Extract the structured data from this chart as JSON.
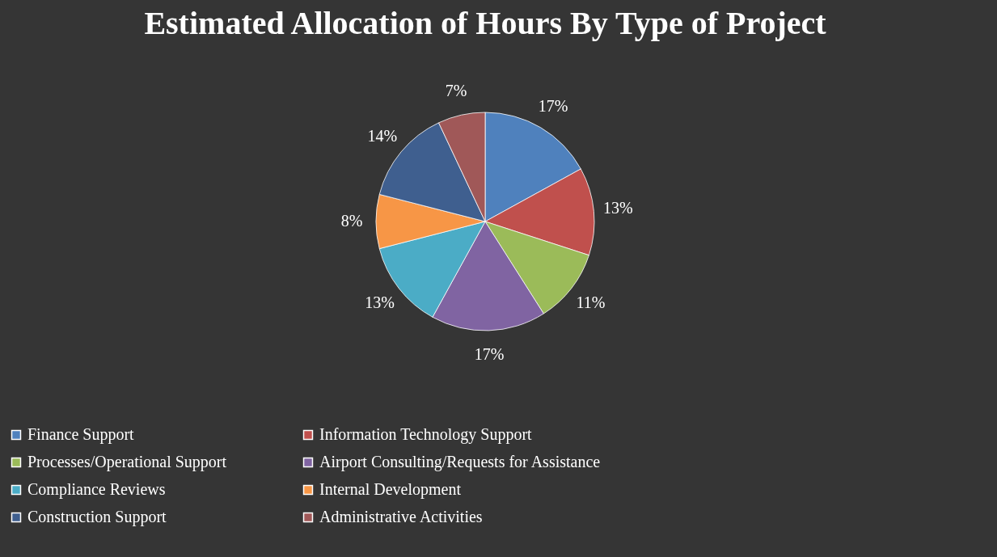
{
  "chart_data": {
    "type": "pie",
    "title": "Estimated Allocation of Hours By Type of Project",
    "categories": [
      "Finance Support",
      "Information Technology Support",
      "Processes/Operational Support",
      "Airport Consulting/Requests for Assistance",
      "Compliance Reviews",
      "Internal Development",
      "Construction Support",
      "Administrative Activities"
    ],
    "values": [
      17,
      13,
      11,
      17,
      13,
      8,
      14,
      7
    ],
    "value_labels": [
      "17%",
      "13%",
      "11%",
      "17%",
      "13%",
      "8%",
      "14%",
      "7%"
    ],
    "colors": [
      "#4f81bd",
      "#c0504d",
      "#9bbb59",
      "#8064a2",
      "#4bacc6",
      "#f79646",
      "#3f5f8f",
      "#a05858"
    ],
    "legend": "bottom"
  }
}
